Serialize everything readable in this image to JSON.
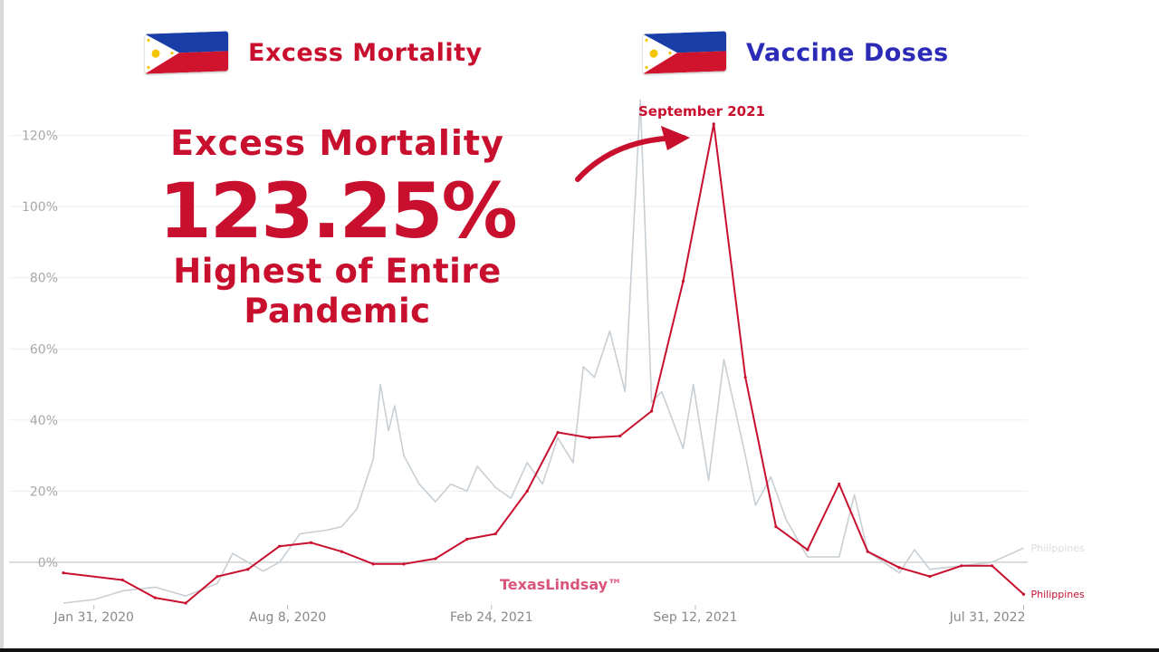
{
  "header": {
    "left_title": "Excess Mortality",
    "right_title": "Vaccine Doses",
    "left_color": "#c8102e",
    "right_color": "#2b2bb8",
    "flag_icon": "philippines-flag-icon"
  },
  "callout": {
    "line1": "Excess Mortality",
    "line2": "123.25%",
    "line3": "Highest of Entire",
    "line4": "Pandemic",
    "color": "#c8102e"
  },
  "annotation": {
    "label": "September 2021"
  },
  "watermark": "TexasLindsay™",
  "chart_data": {
    "type": "line",
    "ylim": [
      -12,
      125
    ],
    "xlim": [
      "2020-01-01",
      "2022-08-04"
    ],
    "y_ticks": [
      0,
      20,
      40,
      60,
      80,
      100,
      120
    ],
    "y_tick_labels": [
      "0%",
      "20%",
      "40%",
      "60%",
      "80%",
      "100%",
      "120%"
    ],
    "x_tick_dates": [
      "2020-01-31",
      "2020-08-08",
      "2021-02-24",
      "2021-09-12",
      "2022-07-31"
    ],
    "x_tick_labels": [
      "Jan 31, 2020",
      "Aug 8, 2020",
      "Feb 24, 2021",
      "Sep 12, 2021",
      "Jul 31, 2022"
    ],
    "grid": true,
    "series": [
      {
        "name": "Philippines",
        "color": "#c8102e",
        "points": [
          [
            "2020-01-01",
            -3
          ],
          [
            "2020-02-28",
            -5
          ],
          [
            "2020-03-31",
            -10
          ],
          [
            "2020-04-30",
            -11.5
          ],
          [
            "2020-05-31",
            -4
          ],
          [
            "2020-06-30",
            -2
          ],
          [
            "2020-07-31",
            4.5
          ],
          [
            "2020-08-31",
            5.5
          ],
          [
            "2020-09-30",
            3
          ],
          [
            "2020-10-31",
            -0.5
          ],
          [
            "2020-11-30",
            -0.5
          ],
          [
            "2020-12-31",
            1
          ],
          [
            "2021-01-31",
            6.5
          ],
          [
            "2021-02-28",
            8
          ],
          [
            "2021-03-31",
            20
          ],
          [
            "2021-04-30",
            36.5
          ],
          [
            "2021-05-31",
            35
          ],
          [
            "2021-06-30",
            35.5
          ],
          [
            "2021-07-31",
            42.5
          ],
          [
            "2021-08-31",
            79
          ],
          [
            "2021-09-30",
            123.25
          ],
          [
            "2021-10-31",
            52
          ],
          [
            "2021-11-30",
            10
          ],
          [
            "2021-12-31",
            3.5
          ],
          [
            "2022-01-31",
            22
          ],
          [
            "2022-02-28",
            3
          ],
          [
            "2022-03-31",
            -1.5
          ],
          [
            "2022-04-30",
            -4
          ],
          [
            "2022-05-31",
            -1
          ],
          [
            "2022-06-30",
            -1
          ],
          [
            "2022-07-31",
            -9
          ]
        ]
      },
      {
        "name": "Philippines",
        "color": "#c8cfd4",
        "points": [
          [
            "2020-01-01",
            -11.5
          ],
          [
            "2020-01-31",
            -10.5
          ],
          [
            "2020-02-29",
            -8
          ],
          [
            "2020-03-31",
            -7
          ],
          [
            "2020-04-30",
            -9.5
          ],
          [
            "2020-05-31",
            -6
          ],
          [
            "2020-06-15",
            2.5
          ],
          [
            "2020-07-15",
            -2.5
          ],
          [
            "2020-07-31",
            0
          ],
          [
            "2020-08-20",
            8
          ],
          [
            "2020-09-15",
            9
          ],
          [
            "2020-09-30",
            10
          ],
          [
            "2020-10-15",
            15
          ],
          [
            "2020-10-31",
            29
          ],
          [
            "2020-11-07",
            50
          ],
          [
            "2020-11-15",
            37
          ],
          [
            "2020-11-21",
            44
          ],
          [
            "2020-11-30",
            30
          ],
          [
            "2020-12-15",
            22
          ],
          [
            "2020-12-31",
            17
          ],
          [
            "2021-01-15",
            22
          ],
          [
            "2021-01-31",
            20
          ],
          [
            "2021-02-10",
            27
          ],
          [
            "2021-02-28",
            21
          ],
          [
            "2021-03-15",
            18
          ],
          [
            "2021-03-31",
            28
          ],
          [
            "2021-04-15",
            22
          ],
          [
            "2021-04-30",
            35
          ],
          [
            "2021-05-15",
            28
          ],
          [
            "2021-05-25",
            55
          ],
          [
            "2021-06-05",
            52
          ],
          [
            "2021-06-20",
            65
          ],
          [
            "2021-07-05",
            48
          ],
          [
            "2021-07-20",
            130
          ],
          [
            "2021-07-31",
            45
          ],
          [
            "2021-08-10",
            48
          ],
          [
            "2021-08-31",
            32
          ],
          [
            "2021-09-10",
            50
          ],
          [
            "2021-09-25",
            23
          ],
          [
            "2021-10-10",
            57
          ],
          [
            "2021-10-31",
            30
          ],
          [
            "2021-11-10",
            16
          ],
          [
            "2021-11-25",
            24
          ],
          [
            "2021-12-10",
            12
          ],
          [
            "2021-12-31",
            1.5
          ],
          [
            "2022-01-31",
            1.5
          ],
          [
            "2022-02-15",
            19
          ],
          [
            "2022-02-28",
            3
          ],
          [
            "2022-03-31",
            -3
          ],
          [
            "2022-04-15",
            3.5
          ],
          [
            "2022-04-30",
            -2
          ],
          [
            "2022-05-31",
            -1
          ],
          [
            "2022-06-30",
            0
          ],
          [
            "2022-07-31",
            4
          ]
        ]
      }
    ]
  }
}
